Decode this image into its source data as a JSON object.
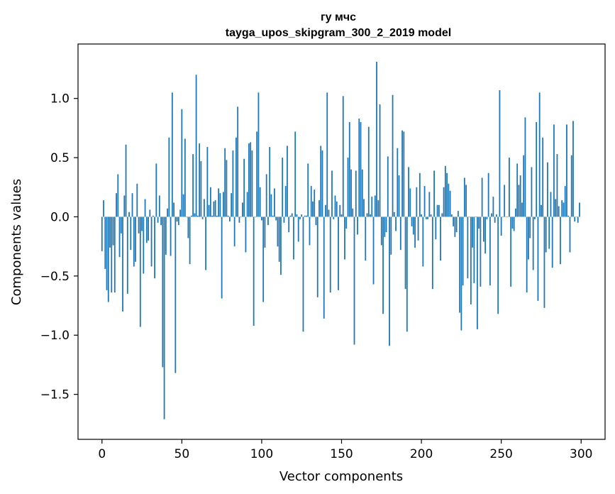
{
  "chart_data": {
    "type": "bar",
    "title": "гу мчс",
    "subtitle": "tayga_upos_skipgram_300_2_2019 model",
    "xlabel": "Vector components",
    "ylabel": "Components values",
    "xlim": [
      -15,
      315
    ],
    "ylim": [
      -1.88,
      1.46
    ],
    "xticks": [
      0,
      50,
      100,
      150,
      200,
      250,
      300
    ],
    "xtick_labels": [
      "0",
      "50",
      "100",
      "150",
      "200",
      "250",
      "300"
    ],
    "yticks": [
      -1.5,
      -1.0,
      -0.5,
      0.0,
      0.5,
      1.0
    ],
    "ytick_labels": [
      "−1.5",
      "−1.0",
      "−0.5",
      "0.0",
      "0.5",
      "1.0"
    ],
    "bar_color": "#1f77b4",
    "grid": false,
    "values": [
      -0.29,
      0.14,
      -0.44,
      -0.62,
      -0.72,
      -0.26,
      -0.64,
      -0.24,
      -0.64,
      0.2,
      0.36,
      -0.34,
      -0.14,
      -0.8,
      0.18,
      0.61,
      -0.65,
      0.04,
      -0.28,
      0.2,
      -0.42,
      -0.38,
      0.28,
      -0.14,
      -0.93,
      -0.12,
      -0.48,
      0.15,
      -0.22,
      -0.2,
      0.06,
      -0.42,
      0.01,
      -0.52,
      0.45,
      -0.05,
      0.18,
      -0.07,
      -1.27,
      -1.71,
      -0.32,
      0.07,
      0.67,
      -0.33,
      1.05,
      0.12,
      -1.32,
      -0.04,
      -0.07,
      0.06,
      0.91,
      0.19,
      0.66,
      0.0,
      -0.18,
      -0.4,
      0.01,
      0.53,
      0.03,
      1.2,
      0.01,
      0.62,
      0.47,
      -0.02,
      0.15,
      -0.45,
      0.59,
      0.1,
      0.25,
      0.01,
      0.13,
      0.14,
      0.01,
      0.24,
      0.2,
      -0.69,
      0.21,
      0.58,
      0.48,
      0.01,
      -0.04,
      0.2,
      0.56,
      -0.25,
      0.67,
      0.93,
      -0.05,
      0.0,
      0.12,
      0.49,
      -0.3,
      0.21,
      0.62,
      0.63,
      0.56,
      -0.92,
      0.0,
      0.72,
      1.05,
      0.25,
      -0.03,
      -0.72,
      -0.26,
      0.36,
      -0.07,
      0.59,
      0.19,
      0.01,
      0.24,
      -0.03,
      -0.25,
      -0.38,
      -0.49,
      0.5,
      -0.05,
      0.26,
      0.6,
      -0.13,
      0.01,
      0.03,
      -0.36,
      0.72,
      0.02,
      -0.21,
      -0.02,
      0.02,
      -0.97,
      0.01,
      0.01,
      0.45,
      -0.24,
      0.26,
      0.13,
      0.23,
      -0.07,
      -0.68,
      0.14,
      0.6,
      0.56,
      -0.86,
      0.1,
      1.05,
      0.06,
      -0.64,
      0.39,
      -0.02,
      0.18,
      0.13,
      -0.62,
      0.1,
      0.02,
      1.02,
      -0.36,
      -0.1,
      0.5,
      0.8,
      0.4,
      0.07,
      -1.08,
      0.39,
      -0.15,
      0.83,
      0.8,
      0.4,
      0.15,
      -0.37,
      0.03,
      0.76,
      0.02,
      0.17,
      -0.57,
      0.18,
      1.31,
      0.14,
      0.95,
      -0.24,
      -0.82,
      -0.17,
      -0.13,
      0.51,
      -1.09,
      -0.32,
      1.03,
      0.04,
      -0.12,
      0.58,
      0.35,
      -0.28,
      0.73,
      0.72,
      -0.61,
      -0.97,
      0.42,
      0.24,
      -0.08,
      -0.15,
      -0.26,
      0.25,
      -0.2,
      0.37,
      0.02,
      -0.42,
      0.26,
      -0.02,
      -0.02,
      0.21,
      0.02,
      -0.61,
      0.39,
      -0.19,
      0.1,
      0.1,
      -0.37,
      0.03,
      0.25,
      0.43,
      0.37,
      0.28,
      0.22,
      0.02,
      -0.08,
      -0.17,
      -0.13,
      0.05,
      -0.81,
      -0.96,
      -0.58,
      0.33,
      0.27,
      -0.52,
      0.0,
      -0.74,
      -0.26,
      -0.56,
      0.0,
      -0.95,
      -0.1,
      -0.59,
      0.33,
      -0.21,
      -0.31,
      -0.02,
      0.37,
      -0.58,
      0.03,
      0.17,
      -0.05,
      0.02,
      -0.82,
      1.07,
      -0.16,
      0.0,
      0.27,
      0.0,
      0.0,
      0.5,
      -0.59,
      -0.1,
      -0.12,
      0.07,
      0.45,
      0.27,
      0.35,
      0.12,
      0.52,
      0.84,
      -0.64,
      -0.36,
      -0.18,
      0.42,
      -0.45,
      -0.02,
      0.8,
      -0.71,
      1.05,
      0.1,
      0.67,
      -0.77,
      -0.3,
      0.46,
      -0.27,
      0.21,
      -0.43,
      0.78,
      0.15,
      0.53,
      0.09,
      -0.4,
      0.14,
      0.12,
      0.26,
      0.78,
      0.01,
      -0.3,
      0.52,
      0.81,
      -0.04,
      0.0,
      -0.05,
      0.12
    ]
  }
}
